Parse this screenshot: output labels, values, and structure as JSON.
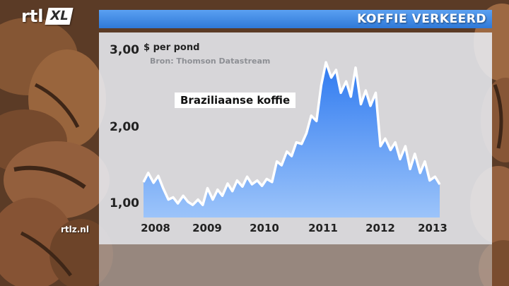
{
  "header": {
    "title": "KOFFIE VERKEERD"
  },
  "logo": {
    "brand": "rtl",
    "channel": "XL"
  },
  "watermark": "rtlz.nl",
  "colors": {
    "title_bar": "#3a86e6",
    "area_fill": "#3d86f0",
    "line": "#ffffff"
  },
  "chart_data": {
    "type": "area",
    "unit_label": "$ per pond",
    "source": "Bron: Thomson Datastream",
    "series": [
      {
        "name": "Braziliaanse koffie",
        "x": [
          2008.0,
          2008.08,
          2008.17,
          2008.25,
          2008.33,
          2008.42,
          2008.5,
          2008.58,
          2008.67,
          2008.75,
          2008.83,
          2008.92,
          2009.0,
          2009.08,
          2009.17,
          2009.25,
          2009.33,
          2009.42,
          2009.5,
          2009.58,
          2009.67,
          2009.75,
          2009.83,
          2009.92,
          2010.0,
          2010.08,
          2010.17,
          2010.25,
          2010.33,
          2010.42,
          2010.5,
          2010.58,
          2010.67,
          2010.75,
          2010.83,
          2010.92,
          2011.0,
          2011.08,
          2011.17,
          2011.25,
          2011.33,
          2011.42,
          2011.5,
          2011.58,
          2011.67,
          2011.75,
          2011.83,
          2011.92,
          2012.0,
          2012.08,
          2012.17,
          2012.25,
          2012.33,
          2012.42,
          2012.5,
          2012.58,
          2012.67,
          2012.75,
          2012.83,
          2012.92,
          2013.0
        ],
        "y": [
          1.28,
          1.4,
          1.27,
          1.36,
          1.2,
          1.05,
          1.08,
          1.0,
          1.1,
          1.02,
          0.98,
          1.05,
          0.98,
          1.2,
          1.05,
          1.18,
          1.1,
          1.26,
          1.16,
          1.3,
          1.22,
          1.35,
          1.25,
          1.3,
          1.23,
          1.32,
          1.28,
          1.55,
          1.5,
          1.68,
          1.62,
          1.8,
          1.78,
          1.92,
          2.15,
          2.08,
          2.55,
          2.85,
          2.65,
          2.75,
          2.45,
          2.6,
          2.4,
          2.78,
          2.3,
          2.48,
          2.28,
          2.45,
          1.75,
          1.85,
          1.7,
          1.8,
          1.58,
          1.75,
          1.45,
          1.65,
          1.4,
          1.55,
          1.3,
          1.35,
          1.25
        ]
      }
    ],
    "x_ticks": [
      "2008",
      "2009",
      "2010",
      "2011",
      "2012",
      "2013"
    ],
    "y_ticks": [
      "1,00",
      "2,00",
      "3,00"
    ],
    "xlim": [
      2008,
      2013
    ],
    "ylim": [
      0.85,
      3.0
    ],
    "grid": false,
    "legend": "none"
  }
}
